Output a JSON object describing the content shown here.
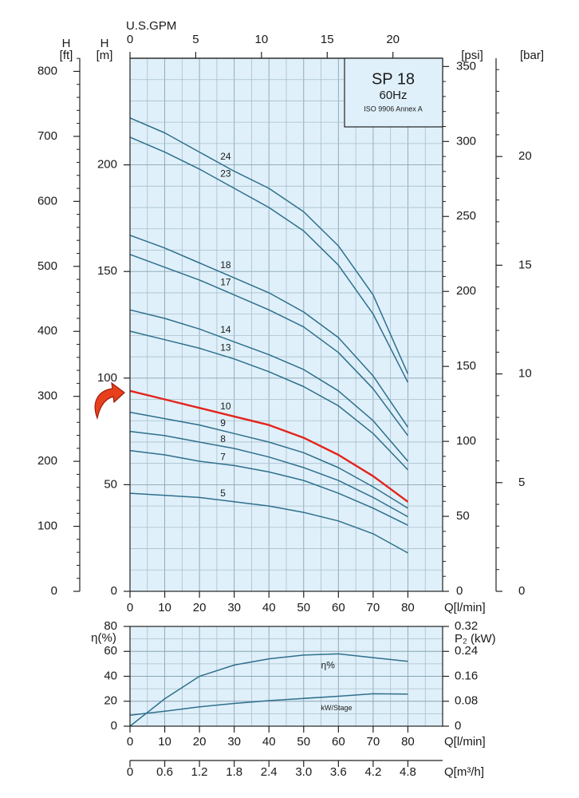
{
  "chart_data": [
    {
      "type": "line",
      "info_box": {
        "title": "SP 18",
        "subtitle": "60Hz",
        "note": "ISO 9906 Annex A"
      },
      "x": [
        0,
        10,
        20,
        30,
        40,
        50,
        60,
        70,
        80
      ],
      "xlim": [
        0,
        90
      ],
      "xticks": [
        0,
        10,
        20,
        30,
        40,
        50,
        60,
        70,
        80
      ],
      "xlabel": "Q[l/min]",
      "x2lim": [
        0,
        23.78
      ],
      "x2ticks": [
        0,
        5,
        10,
        15,
        20
      ],
      "x2label": "U.S.GPM",
      "ylim": [
        0,
        250
      ],
      "yticks": [
        0,
        50,
        100,
        150,
        200
      ],
      "ylabel": [
        "H",
        "[m]"
      ],
      "y2lim": [
        0,
        355.5
      ],
      "y2ticks": [
        0,
        50,
        100,
        150,
        200,
        250,
        300,
        350
      ],
      "y2label": "[psi]",
      "extra_axes": [
        {
          "position": "left-outer",
          "label": [
            "H",
            "[ft]"
          ],
          "lim": [
            0,
            820.2
          ],
          "ticks": [
            0,
            100,
            200,
            300,
            400,
            500,
            600,
            700,
            800
          ]
        },
        {
          "position": "right-outer",
          "label": "[bar]",
          "lim": [
            0,
            24.52
          ],
          "ticks": [
            0,
            5,
            10,
            15,
            20
          ]
        }
      ],
      "grid": true,
      "series": [
        {
          "name": "24",
          "color": "#2f6f8c",
          "values": [
            222,
            215,
            206,
            197,
            189,
            178,
            162,
            139,
            102
          ]
        },
        {
          "name": "23",
          "color": "#2f6f8c",
          "values": [
            213,
            206,
            198,
            189,
            180,
            169,
            153,
            130,
            98
          ]
        },
        {
          "name": "18",
          "color": "#2f6f8c",
          "values": [
            167,
            161,
            154,
            147,
            140,
            131,
            119,
            101,
            77
          ]
        },
        {
          "name": "17",
          "color": "#2f6f8c",
          "values": [
            158,
            152,
            146,
            139,
            132,
            124,
            112,
            95,
            73
          ]
        },
        {
          "name": "14",
          "color": "#2f6f8c",
          "values": [
            132,
            128,
            123,
            117,
            111,
            104,
            94,
            80,
            61
          ]
        },
        {
          "name": "13",
          "color": "#2f6f8c",
          "values": [
            122,
            118,
            114,
            109,
            103,
            96,
            87,
            74,
            57
          ]
        },
        {
          "name": "10",
          "color": "#e3241b",
          "values": [
            94,
            90,
            86,
            82,
            78,
            72,
            64,
            54,
            42
          ]
        },
        {
          "name": "9",
          "color": "#2f6f8c",
          "values": [
            84,
            81,
            78,
            74,
            70,
            65,
            58,
            49,
            39
          ]
        },
        {
          "name": "8",
          "color": "#2f6f8c",
          "values": [
            75,
            73,
            70,
            67,
            63,
            58,
            52,
            44,
            35
          ]
        },
        {
          "name": "7",
          "color": "#2f6f8c",
          "values": [
            66,
            64,
            61,
            59,
            56,
            52,
            46,
            39,
            31
          ]
        },
        {
          "name": "5",
          "color": "#2f6f8c",
          "values": [
            46,
            45,
            44,
            42,
            40,
            37,
            33,
            27,
            18
          ]
        }
      ]
    },
    {
      "type": "line",
      "x": [
        0,
        10,
        20,
        30,
        40,
        50,
        60,
        70,
        80
      ],
      "xlim": [
        0,
        90
      ],
      "xticks": [
        0,
        10,
        20,
        30,
        40,
        50,
        60,
        70,
        80
      ],
      "xlabel": "Q[l/min]",
      "ylim": [
        0,
        80
      ],
      "yticks": [
        0,
        20,
        40,
        60,
        80
      ],
      "ylabel": "η(%)",
      "y2lim": [
        0,
        0.32
      ],
      "y2ticks": [
        0,
        0.08,
        0.16,
        0.24,
        0.32
      ],
      "y2label": "P₂ (kW)",
      "extra_axes": [
        {
          "position": "bottom-outer",
          "label": "Q[m³/h]",
          "lim": [
            0,
            5.4
          ],
          "ticks": [
            0,
            0.6,
            1.2,
            1.8,
            2.4,
            {
              "value": 3,
              "label": "3.0"
            },
            3.6,
            4.2,
            4.8
          ]
        }
      ],
      "grid": true,
      "series": [
        {
          "name": "η%",
          "color": "#2f6f8c",
          "values": [
            0,
            22,
            40,
            49,
            54,
            57,
            58,
            55,
            52
          ]
        },
        {
          "name": "kW/Stage",
          "color": "#2f6f8c",
          "axis": "y2",
          "values": [
            0.035,
            0.048,
            0.062,
            0.073,
            0.082,
            0.089,
            0.096,
            0.104,
            0.103
          ]
        }
      ]
    }
  ]
}
